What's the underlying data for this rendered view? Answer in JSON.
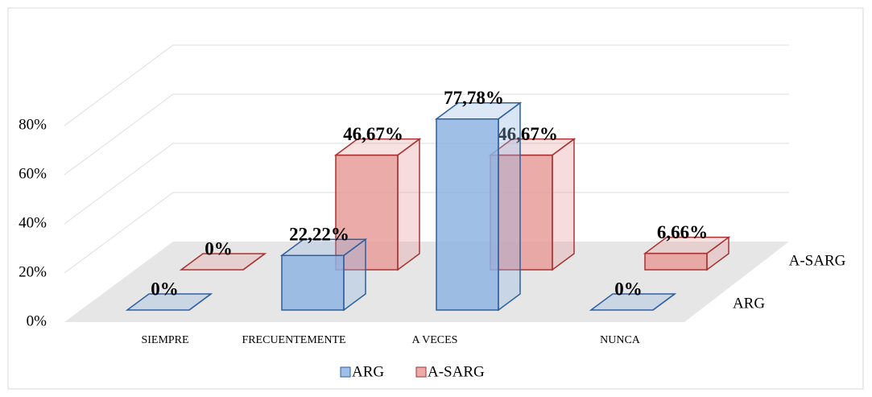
{
  "chart_data": {
    "type": "bar3d",
    "categories": [
      "SIEMPRE",
      "FRECUENTEMENTE",
      "A VECES",
      "NUNCA"
    ],
    "series": [
      {
        "name": "ARG",
        "color": "#8eb4e3",
        "stroke": "#2e5f9e",
        "values": [
          0,
          22.22,
          77.78,
          0
        ],
        "value_labels": [
          "0%",
          "22,22%",
          "77,78%",
          "0%"
        ]
      },
      {
        "name": "A-SARG",
        "color": "#e69c9a",
        "stroke": "#a83232",
        "values": [
          0,
          46.67,
          46.67,
          6.66
        ],
        "value_labels": [
          "0%",
          "46,67%",
          "46,67%",
          "6,66%"
        ]
      }
    ],
    "ylim": [
      0,
      100
    ],
    "yticks": [
      {
        "value": 0,
        "label": "0%"
      },
      {
        "value": 20,
        "label": "20%"
      },
      {
        "value": 40,
        "label": "40%"
      },
      {
        "value": 60,
        "label": "60%"
      },
      {
        "value": 80,
        "label": "80%"
      }
    ],
    "grid": true,
    "legend": "bottom"
  }
}
